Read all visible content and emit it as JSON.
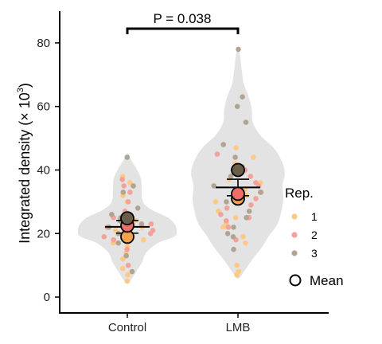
{
  "chart_data": {
    "type": "scatter",
    "subtype": "violin-superplot",
    "ylabel_text": "Integrated density (× 10",
    "ylabel_exp": "3",
    "ylabel_close": ")",
    "ylim": [
      -5,
      90
    ],
    "yticks": [
      0,
      20,
      40,
      60,
      80
    ],
    "categories": [
      "Control",
      "LMB"
    ],
    "annotation": "P = 0.038",
    "legend": {
      "title": "Rep.",
      "items": [
        {
          "label": "1",
          "color": "#ffc985"
        },
        {
          "label": "2",
          "color": "#f4a19c"
        },
        {
          "label": "3",
          "color": "#b1a592"
        }
      ],
      "mean_label": "Mean"
    },
    "violins": [
      {
        "category": "Control",
        "profile": [
          [
            5,
            0.05
          ],
          [
            8,
            0.18
          ],
          [
            11,
            0.3
          ],
          [
            14,
            0.38
          ],
          [
            17,
            0.62
          ],
          [
            19,
            0.95
          ],
          [
            21,
            1.0
          ],
          [
            23,
            0.96
          ],
          [
            25,
            0.82
          ],
          [
            27,
            0.55
          ],
          [
            29,
            0.36
          ],
          [
            31,
            0.3
          ],
          [
            34,
            0.29
          ],
          [
            37,
            0.28
          ],
          [
            40,
            0.2
          ],
          [
            43,
            0.08
          ],
          [
            45,
            0.02
          ]
        ]
      },
      {
        "category": "LMB",
        "profile": [
          [
            6,
            0.03
          ],
          [
            8,
            0.12
          ],
          [
            12,
            0.3
          ],
          [
            16,
            0.5
          ],
          [
            19,
            0.62
          ],
          [
            23,
            0.8
          ],
          [
            27,
            0.88
          ],
          [
            31,
            0.92
          ],
          [
            35,
            0.9
          ],
          [
            39,
            0.95
          ],
          [
            43,
            0.88
          ],
          [
            47,
            0.72
          ],
          [
            51,
            0.45
          ],
          [
            55,
            0.3
          ],
          [
            59,
            0.28
          ],
          [
            63,
            0.22
          ],
          [
            67,
            0.12
          ],
          [
            71,
            0.08
          ],
          [
            75,
            0.05
          ],
          [
            78,
            0.02
          ]
        ]
      }
    ],
    "points": [
      {
        "category": "Control",
        "rep": "1",
        "values": [
          5,
          7,
          9,
          12,
          14,
          16,
          17,
          18,
          19,
          20,
          21,
          22,
          24,
          26,
          30,
          32,
          36,
          38
        ]
      },
      {
        "category": "Control",
        "rep": "2",
        "values": [
          10,
          15,
          18,
          19,
          20,
          21,
          22,
          22,
          23,
          25,
          27,
          30,
          33,
          35,
          37
        ]
      },
      {
        "category": "Control",
        "rep": "3",
        "values": [
          8,
          13,
          17,
          19,
          20,
          22,
          23,
          24,
          25,
          26,
          28,
          33,
          35,
          44
        ]
      },
      {
        "category": "LMB",
        "rep": "1",
        "values": [
          7,
          8,
          10,
          17,
          19,
          22,
          23,
          25,
          27,
          30,
          31,
          32,
          34,
          36,
          37,
          39,
          41,
          42,
          44,
          47
        ]
      },
      {
        "category": "LMB",
        "rep": "2",
        "values": [
          18,
          22,
          24,
          25,
          26,
          28,
          29,
          31,
          33,
          35,
          36,
          38,
          40,
          41,
          45
        ]
      },
      {
        "category": "LMB",
        "rep": "3",
        "values": [
          15,
          19,
          20,
          22,
          25,
          27,
          30,
          33,
          35,
          38,
          41,
          44,
          48,
          55,
          60,
          63,
          78
        ]
      }
    ],
    "rep_means": [
      {
        "category": "Control",
        "rep": "1",
        "value": 19
      },
      {
        "category": "Control",
        "rep": "2",
        "value": 22.5
      },
      {
        "category": "Control",
        "rep": "3",
        "value": 24.8
      },
      {
        "category": "LMB",
        "rep": "1",
        "value": 31
      },
      {
        "category": "LMB",
        "rep": "2",
        "value": 32.5
      },
      {
        "category": "LMB",
        "rep": "3",
        "value": 40
      }
    ],
    "summary": [
      {
        "category": "Control",
        "mean": 22.1,
        "sem_low": 20.1,
        "sem_high": 24.1
      },
      {
        "category": "LMB",
        "mean": 34.5,
        "sem_low": 31.9,
        "sem_high": 37.1
      }
    ],
    "colors": {
      "violin": "#e3e3e3",
      "rep1": "#ffc985",
      "rep2": "#f4a19c",
      "rep3": "#b1a592",
      "mean1": "#f5a24c",
      "mean2": "#ef6e68",
      "mean3": "#6b5e48"
    }
  }
}
